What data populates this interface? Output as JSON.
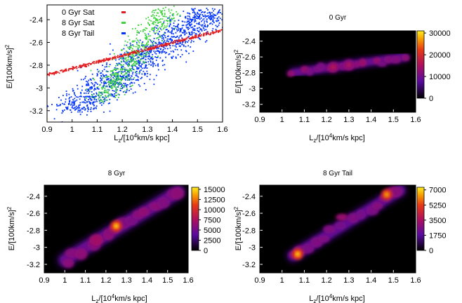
{
  "panels": [
    {
      "id": "scatter",
      "title": "",
      "legend": [
        "0 Gyr Sat",
        "8 Gyr Sat",
        "8 Gyr Tail"
      ]
    },
    {
      "id": "h0",
      "title": "0 Gyr",
      "colorbar_ticks": [
        "30000",
        "20000",
        "10000",
        "0"
      ]
    },
    {
      "id": "h8",
      "title": "8 Gyr",
      "colorbar_ticks": [
        "15000",
        "12500",
        "10000",
        "7500",
        "5000",
        "2500",
        "0"
      ]
    },
    {
      "id": "ht",
      "title": "8 Gyr Tail",
      "colorbar_ticks": [
        "7000",
        "5250",
        "3500",
        "1750",
        "0"
      ]
    }
  ],
  "chart_data": [
    {
      "type": "scatter",
      "xlabel": "L_z/[10^4km/s kpc]",
      "ylabel": "E/[100km/s]^2",
      "xticks": [
        "0.9",
        "1",
        "1.1",
        "1.2",
        "1.3",
        "1.4",
        "1.5",
        "1.6"
      ],
      "yticks": [
        "-2.4",
        "-2.6",
        "-2.8",
        "-3",
        "-3.2"
      ],
      "xlim": [
        0.9,
        1.6
      ],
      "ylim": [
        -3.3,
        -2.27
      ],
      "series": [
        {
          "name": "0 Gyr Sat",
          "color": "#e41a1c",
          "band": {
            "x0": 0.9,
            "y0": -2.885,
            "x1": 1.6,
            "y1": -2.49,
            "w": 0.016
          }
        },
        {
          "name": "8 Gyr Sat",
          "color": "#3ed43e",
          "band": {
            "x0": 1.12,
            "y0": -3.1,
            "x1": 1.38,
            "y1": -2.3,
            "w": 0.07
          }
        },
        {
          "name": "8 Gyr Tail",
          "color": "#0033ff",
          "band": {
            "x0": 1.0,
            "y0": -3.2,
            "x1": 1.55,
            "y1": -2.33,
            "w": 0.13
          }
        }
      ],
      "legend_position": "top-left"
    },
    {
      "type": "heatmap",
      "title": "0 Gyr",
      "xlabel": "L_z/[10^4km/s kpc]",
      "ylabel": "E/[100km/s]^2",
      "xticks": [
        "0.9",
        "1",
        "1.1",
        "1.2",
        "1.3",
        "1.4",
        "1.5",
        "1.6"
      ],
      "yticks": [
        "-2.4",
        "-2.6",
        "-2.8",
        "-3",
        "-3.2"
      ],
      "xlim": [
        0.9,
        1.6
      ],
      "ylim": [
        -3.3,
        -2.27
      ],
      "zlim": [
        0,
        31000
      ],
      "ridge": [
        [
          1.05,
          -2.8
        ],
        [
          1.55,
          -2.6
        ]
      ],
      "peaks": [
        {
          "x": 1.23,
          "y": -2.73,
          "value": 17000
        },
        {
          "x": 1.3,
          "y": -2.7,
          "value": 16000
        }
      ]
    },
    {
      "type": "heatmap",
      "title": "8 Gyr",
      "xlabel": "L_z/[10^4km/s kpc]",
      "ylabel": "E/[100km/s]^2",
      "xticks": [
        "0.9",
        "1",
        "1.1",
        "1.2",
        "1.3",
        "1.4",
        "1.5",
        "1.6"
      ],
      "yticks": [
        "-2.4",
        "-2.6",
        "-2.8",
        "-3",
        "-3.2"
      ],
      "xlim": [
        0.9,
        1.6
      ],
      "ylim": [
        -3.3,
        -2.27
      ],
      "zlim": [
        0,
        15500
      ],
      "ridge": [
        [
          1.0,
          -3.15
        ],
        [
          1.55,
          -2.35
        ]
      ],
      "peaks": [
        {
          "x": 1.25,
          "y": -2.75,
          "value": 15000
        }
      ]
    },
    {
      "type": "heatmap",
      "title": "8 Gyr Tail",
      "xlabel": "L_z/[10^4km/s kpc]",
      "ylabel": "E/[100km/s]^2",
      "xticks": [
        "0.9",
        "1",
        "1.1",
        "1.2",
        "1.3",
        "1.4",
        "1.5",
        "1.6"
      ],
      "yticks": [
        "-2.4",
        "-2.6",
        "-2.8",
        "-3",
        "-3.2"
      ],
      "xlim": [
        0.9,
        1.6
      ],
      "ylim": [
        -3.3,
        -2.27
      ],
      "zlim": [
        0,
        7300
      ],
      "ridge": [
        [
          1.05,
          -3.1
        ],
        [
          1.53,
          -2.33
        ]
      ],
      "peaks": [
        {
          "x": 1.07,
          "y": -3.08,
          "value": 7000
        },
        {
          "x": 1.47,
          "y": -2.38,
          "value": 6500
        }
      ]
    }
  ]
}
